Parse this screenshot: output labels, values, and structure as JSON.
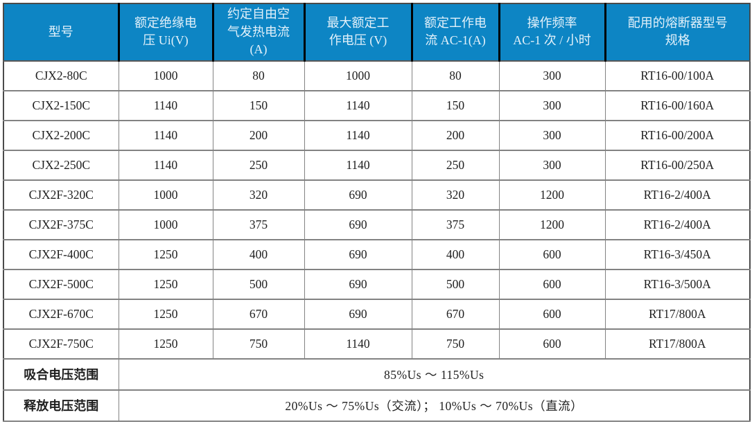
{
  "table": {
    "columns": [
      {
        "label": "型号"
      },
      {
        "label": "额定绝缘电\n压 Ui(V)"
      },
      {
        "label": "约定自由空\n气发热电流\n(A)"
      },
      {
        "label": "最大额定工\n作电压 (V)"
      },
      {
        "label": "额定工作电\n流 AC-1(A)"
      },
      {
        "label": "操作频率\nAC-1 次 / 小时"
      },
      {
        "label": "配用的熔断器型号\n规格"
      }
    ],
    "rows": [
      [
        "CJX2-80C",
        "1000",
        "80",
        "1000",
        "80",
        "300",
        "RT16-00/100A"
      ],
      [
        "CJX2-150C",
        "1140",
        "150",
        "1140",
        "150",
        "300",
        "RT16-00/160A"
      ],
      [
        "CJX2-200C",
        "1140",
        "200",
        "1140",
        "200",
        "300",
        "RT16-00/200A"
      ],
      [
        "CJX2-250C",
        "1140",
        "250",
        "1140",
        "250",
        "300",
        "RT16-00/250A"
      ],
      [
        "CJX2F-320C",
        "1000",
        "320",
        "690",
        "320",
        "1200",
        "RT16-2/400A"
      ],
      [
        "CJX2F-375C",
        "1000",
        "375",
        "690",
        "375",
        "1200",
        "RT16-2/400A"
      ],
      [
        "CJX2F-400C",
        "1250",
        "400",
        "690",
        "400",
        "600",
        "RT16-3/450A"
      ],
      [
        "CJX2F-500C",
        "1250",
        "500",
        "690",
        "500",
        "600",
        "RT16-3/500A"
      ],
      [
        "CJX2F-670C",
        "1250",
        "670",
        "690",
        "670",
        "600",
        "RT17/800A"
      ],
      [
        "CJX2F-750C",
        "1250",
        "750",
        "1140",
        "750",
        "600",
        "RT17/800A"
      ]
    ],
    "footer_rows": [
      {
        "label": "吸合电压范围",
        "value": "85%Us ～ 115%Us"
      },
      {
        "label": "释放电压范围",
        "value": "20%Us ～ 75%Us（交流）； 10%Us ～ 70%Us（直流）"
      }
    ]
  },
  "colors": {
    "header_bg": "#0d85c4",
    "header_text": "#e3f1fa",
    "header_separator": "#000000",
    "inner_border": "#828282",
    "outer_border": "#4a4a4a",
    "body_text": "#1f1f1f",
    "page_bg": "#ffffff"
  }
}
